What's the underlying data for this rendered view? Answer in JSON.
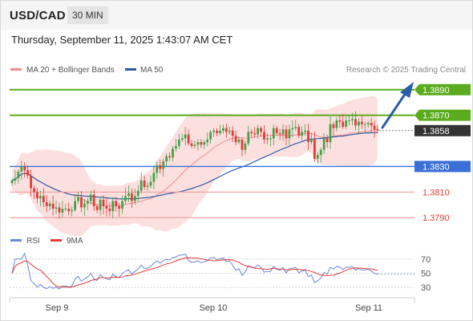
{
  "header": {
    "symbol": "USD/CAD",
    "timeframe": "30 MIN"
  },
  "datetime": "Thursday, September 11, 2025 1:43:07 AM CET",
  "legend": {
    "ma20_label": "MA 20 + Bollinger Bands",
    "ma20_color": "#f28c8c",
    "ma50_label": "MA 50",
    "ma50_color": "#2e5aa6"
  },
  "attribution": "Research © 2025 Trading Central",
  "colors": {
    "up_candle": "#43a047",
    "down_candle": "#e53935",
    "target_line": "#5aab1e",
    "pivot_line": "#3a6fd8",
    "support_line": "#f2a3a3",
    "current_label": "#333333",
    "arrow": "#2c5da8",
    "rsi": "#6b86d6",
    "rsi_ma": "#e53935"
  },
  "levels": [
    {
      "value": 1.389,
      "label": "1.3890",
      "kind": "target"
    },
    {
      "value": 1.387,
      "label": "1.3870",
      "kind": "target"
    },
    {
      "value": 1.3858,
      "label": "1.3858",
      "kind": "current"
    },
    {
      "value": 1.383,
      "label": "1.3830",
      "kind": "pivot"
    },
    {
      "value": 1.381,
      "label": "1.3810",
      "kind": "support"
    },
    {
      "value": 1.379,
      "label": "1.3790",
      "kind": "support"
    }
  ],
  "chart_data": [
    {
      "type": "candlestick",
      "instrument": "USD/CAD",
      "interval": "30 min",
      "x_tick_labels": [
        "Sep 9",
        "Sep 10",
        "Sep 11"
      ],
      "ylim": [
        1.3782,
        1.3898
      ],
      "close": [
        1.3819,
        1.3821,
        1.3826,
        1.383,
        1.3827,
        1.3823,
        1.3813,
        1.381,
        1.3805,
        1.3807,
        1.3802,
        1.3799,
        1.3801,
        1.3797,
        1.3798,
        1.3794,
        1.3797,
        1.3797,
        1.3795,
        1.3796,
        1.3803,
        1.3806,
        1.3798,
        1.3801,
        1.3803,
        1.3808,
        1.3799,
        1.3796,
        1.3804,
        1.3799,
        1.3797,
        1.3795,
        1.3803,
        1.3799,
        1.3797,
        1.3803,
        1.3807,
        1.3809,
        1.3803,
        1.3807,
        1.3811,
        1.3819,
        1.3814,
        1.3815,
        1.3818,
        1.3825,
        1.3831,
        1.3828,
        1.3834,
        1.3838,
        1.3837,
        1.3844,
        1.3846,
        1.3851,
        1.3852,
        1.3855,
        1.3848,
        1.3846,
        1.3847,
        1.3849,
        1.3847,
        1.3849,
        1.3851,
        1.3857,
        1.3858,
        1.3856,
        1.3858,
        1.386,
        1.3857,
        1.3858,
        1.3854,
        1.3849,
        1.3851,
        1.3843,
        1.3848,
        1.3857,
        1.3856,
        1.3855,
        1.386,
        1.3857,
        1.3851,
        1.3852,
        1.3852,
        1.386,
        1.3856,
        1.3855,
        1.3859,
        1.3852,
        1.3859,
        1.386,
        1.3861,
        1.3854,
        1.3857,
        1.3858,
        1.3849,
        1.3851,
        1.3836,
        1.3839,
        1.3843,
        1.3852,
        1.3849,
        1.3863,
        1.386,
        1.3866,
        1.3865,
        1.3861,
        1.3866,
        1.3866,
        1.3867,
        1.3862,
        1.3865,
        1.3863,
        1.3863,
        1.3864,
        1.3862,
        1.3859,
        1.3858
      ],
      "ma20_color": "#f28c8c",
      "ma50_color": "#2e5aa6",
      "bollinger_band_color": "#fbdada"
    },
    {
      "type": "line",
      "title": "RSI",
      "series": [
        {
          "name": "RSI",
          "color": "#6b86d6"
        },
        {
          "name": "9MA",
          "color": "#e53935"
        }
      ],
      "y_ticks": [
        70,
        50,
        30
      ],
      "ylim": [
        20,
        80
      ]
    }
  ]
}
